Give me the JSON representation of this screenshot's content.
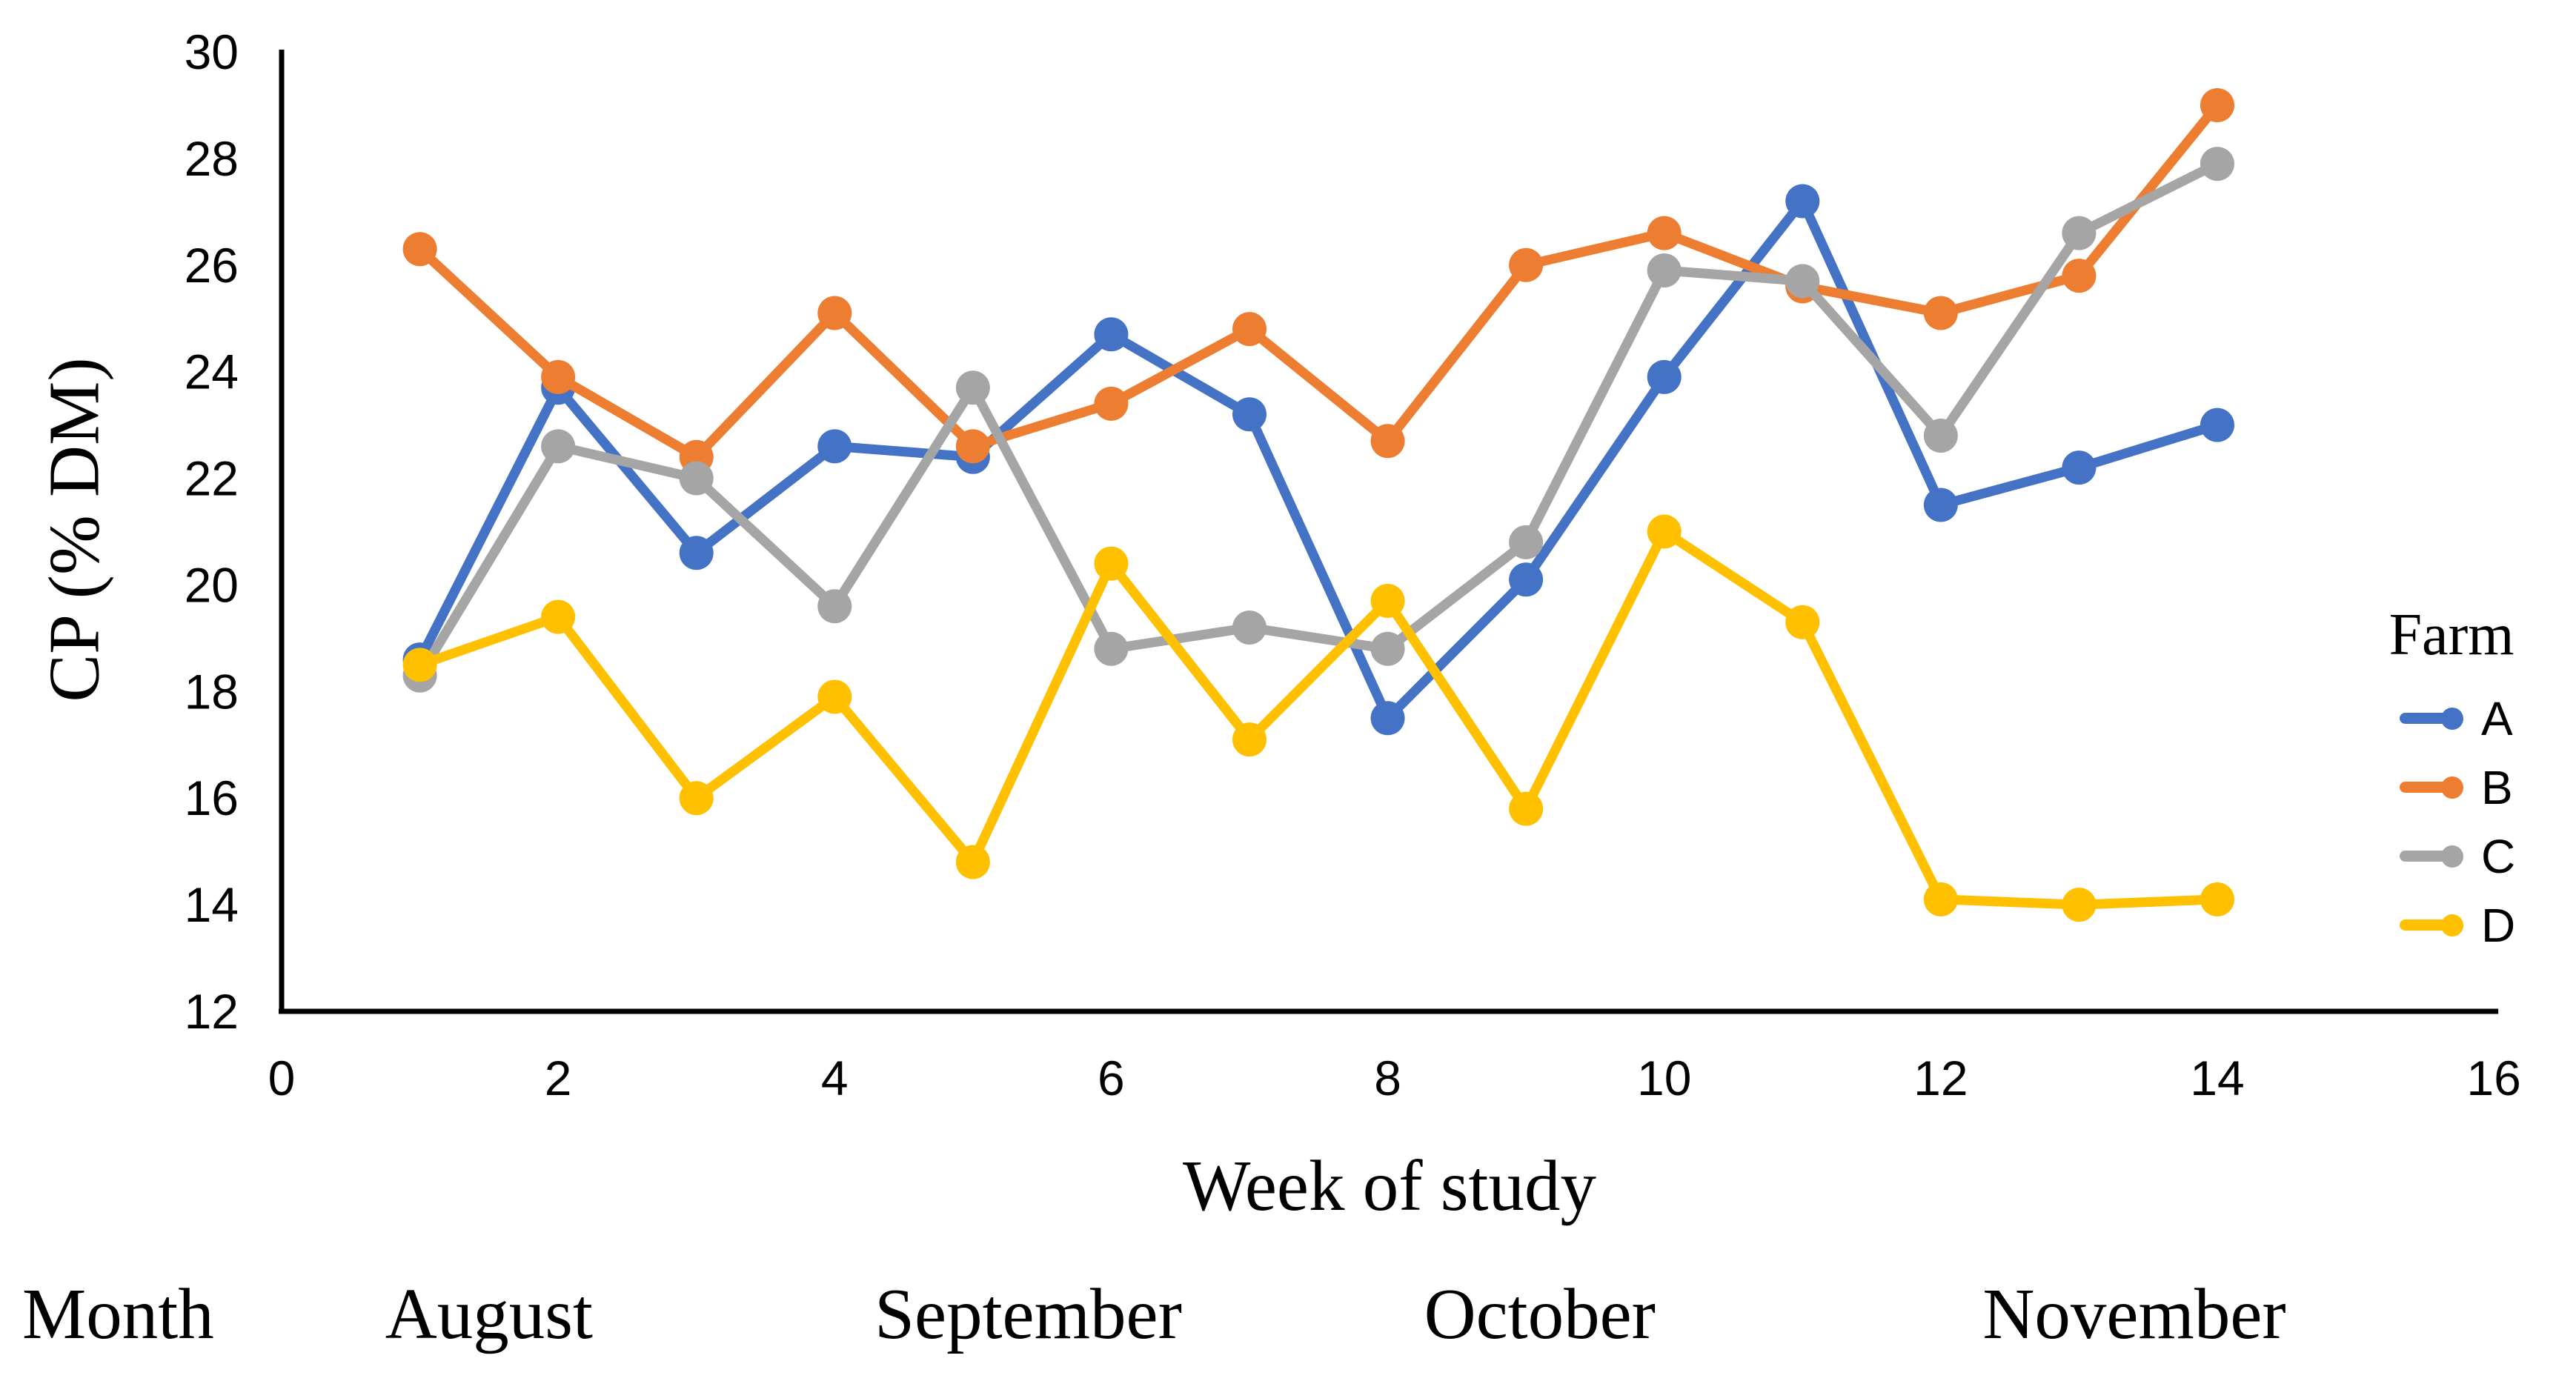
{
  "chart_data": {
    "type": "line",
    "title": "",
    "xlabel": "Week of study",
    "ylabel": "CP (% DM)",
    "legend_title": "Farm",
    "legend_position": "right",
    "grid": false,
    "xlim": [
      0,
      16
    ],
    "ylim": [
      12,
      30
    ],
    "x_ticks": [
      0,
      2,
      4,
      6,
      8,
      10,
      12,
      14,
      16
    ],
    "y_ticks": [
      12,
      14,
      16,
      18,
      20,
      22,
      24,
      26,
      28,
      30
    ],
    "x": [
      1,
      2,
      3,
      4,
      5,
      6,
      7,
      8,
      9,
      10,
      11,
      12,
      13,
      14
    ],
    "series": [
      {
        "name": "A",
        "color": "#4472C4",
        "values": [
          18.6,
          23.7,
          20.6,
          22.6,
          22.4,
          24.7,
          23.2,
          17.5,
          20.1,
          23.9,
          27.2,
          21.5,
          22.2,
          23.0
        ]
      },
      {
        "name": "B",
        "color": "#ED7D31",
        "values": [
          26.3,
          23.9,
          22.4,
          25.1,
          22.6,
          23.4,
          24.8,
          22.7,
          26.0,
          26.6,
          25.6,
          25.1,
          25.8,
          29.0
        ]
      },
      {
        "name": "C",
        "color": "#A5A5A5",
        "values": [
          18.3,
          22.6,
          22.0,
          19.6,
          23.7,
          18.8,
          19.2,
          18.8,
          20.8,
          25.9,
          25.7,
          22.8,
          26.6,
          27.9
        ]
      },
      {
        "name": "D",
        "color": "#FFC000",
        "values": [
          18.5,
          19.4,
          16.0,
          17.9,
          14.8,
          20.4,
          17.1,
          19.7,
          15.8,
          21.0,
          19.3,
          14.1,
          14.0,
          14.1
        ]
      }
    ],
    "months_row": {
      "row_label": "Month",
      "entries": [
        {
          "label": "August",
          "center_week": 1.5
        },
        {
          "label": "September",
          "center_week": 5.4
        },
        {
          "label": "October",
          "center_week": 9.1
        },
        {
          "label": "November",
          "center_week": 13.4
        }
      ]
    }
  }
}
